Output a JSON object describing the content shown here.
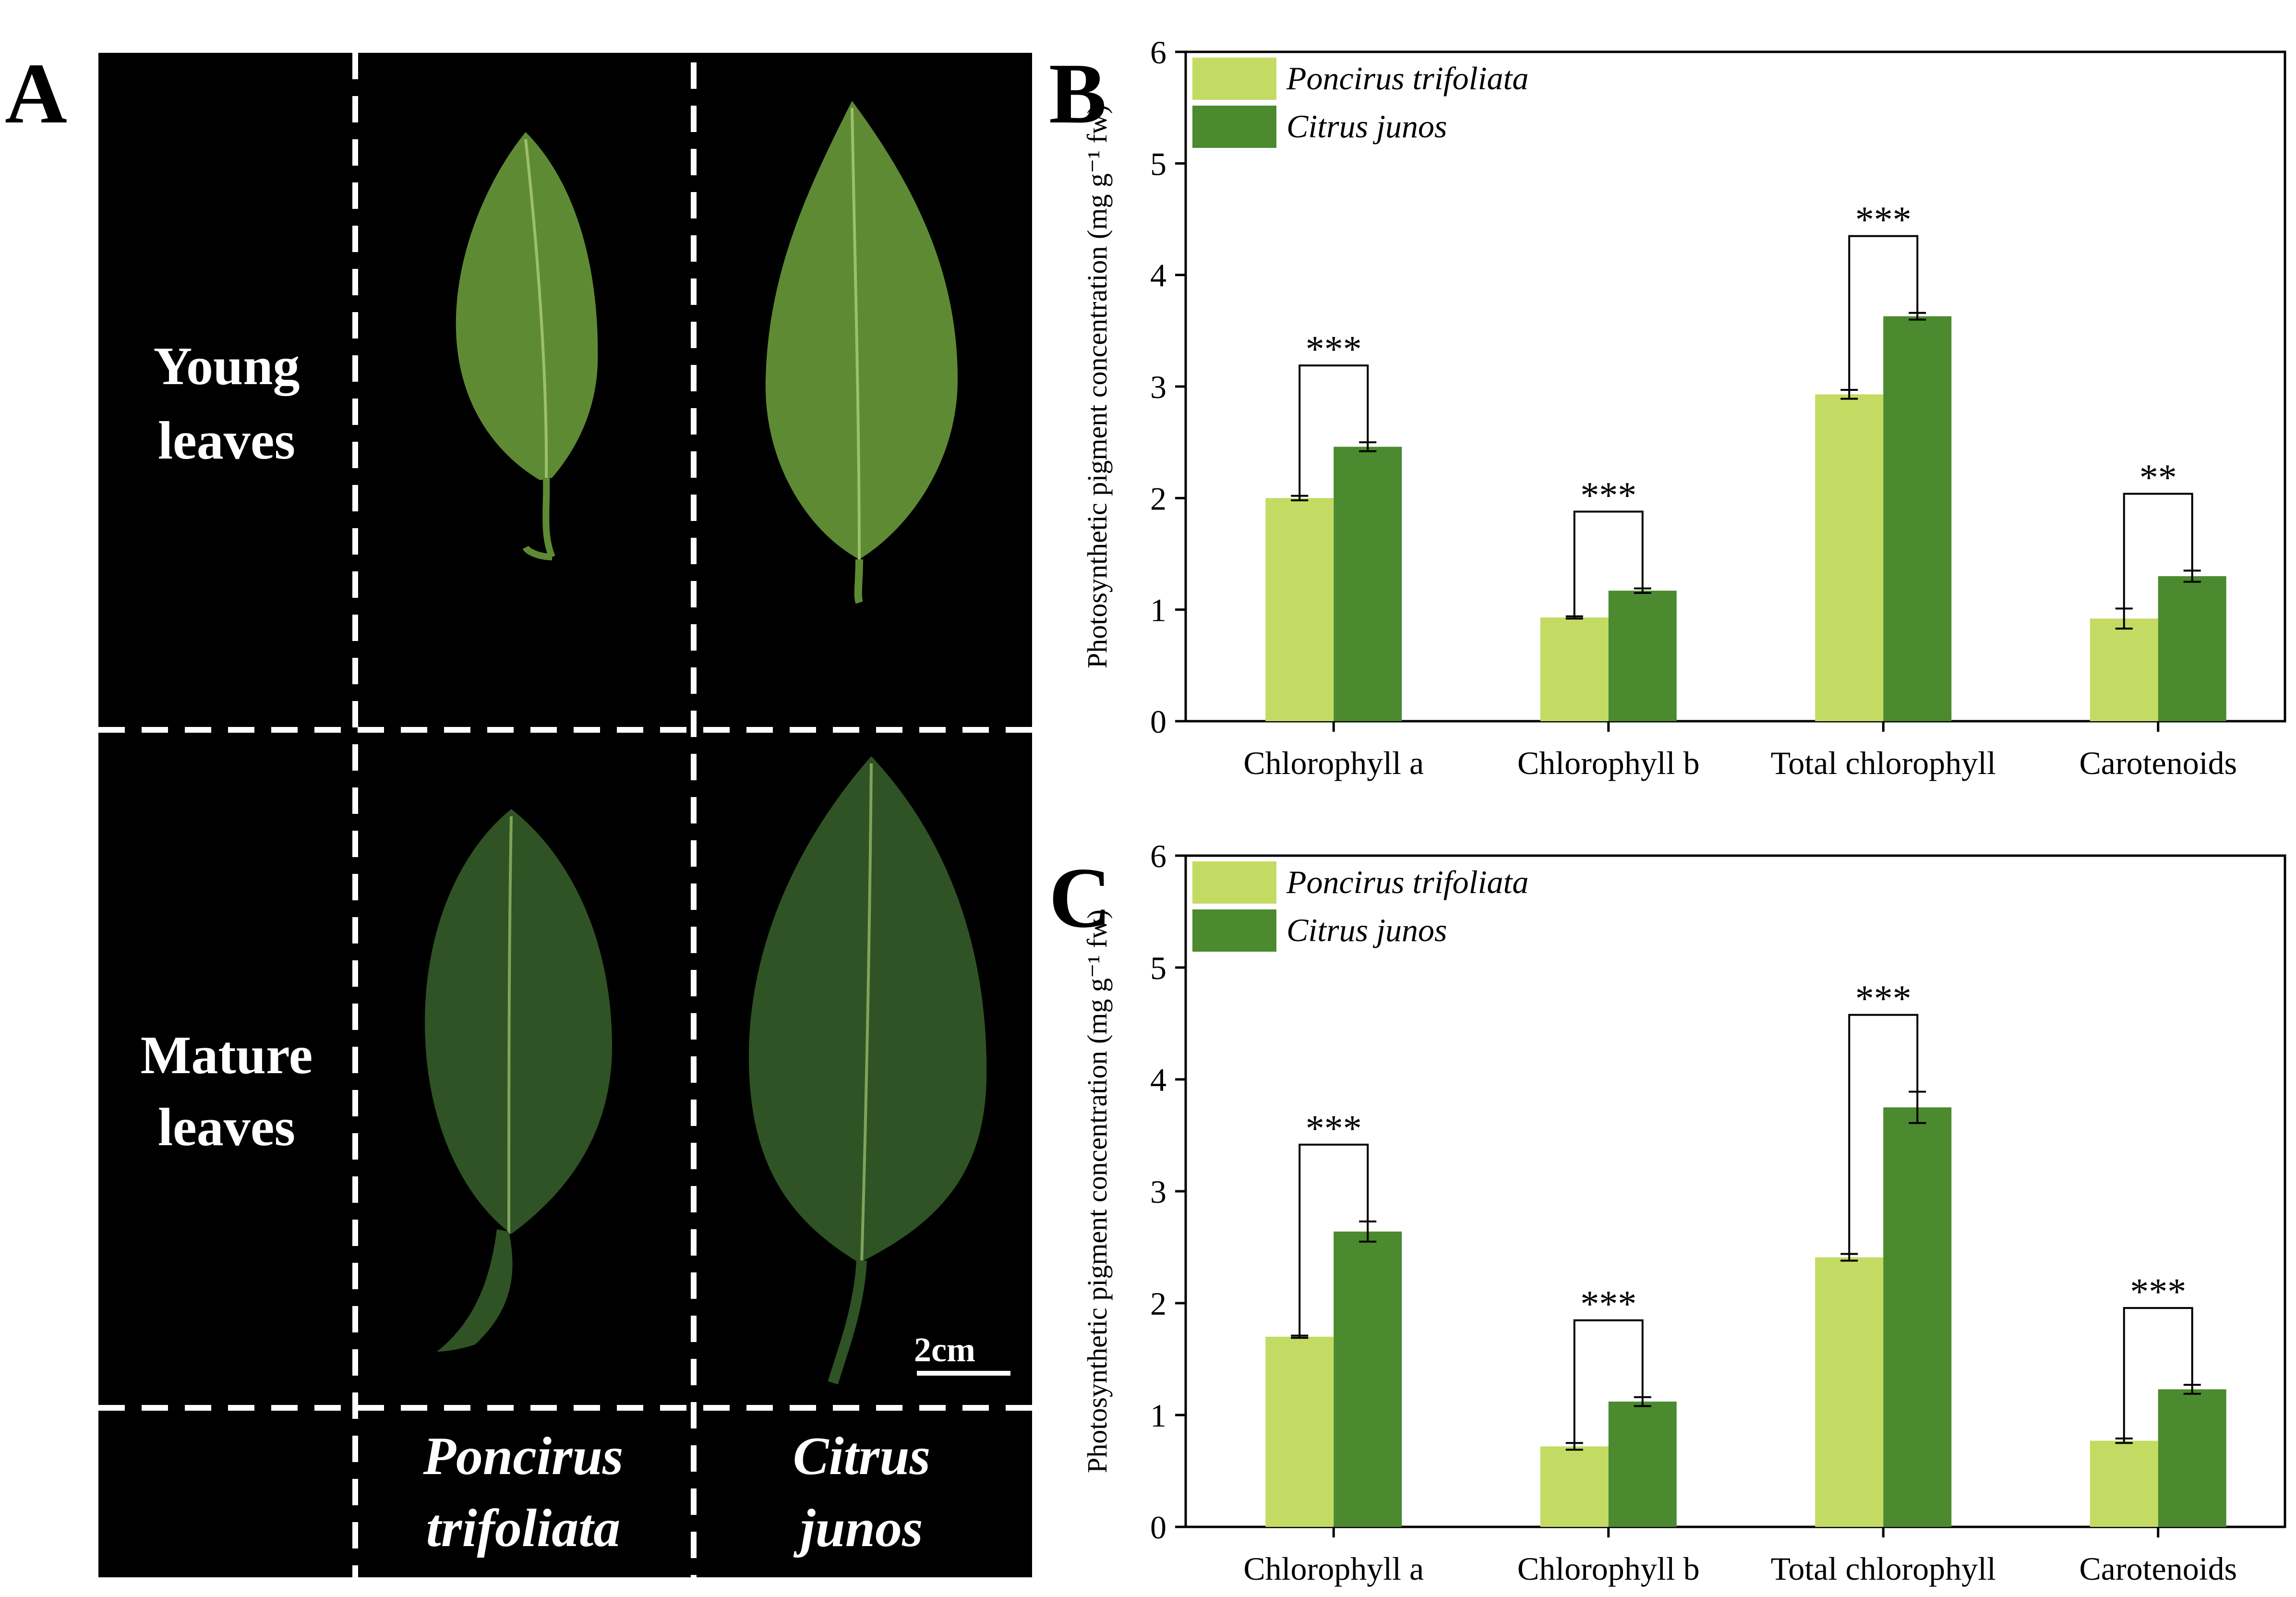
{
  "panel_labels": {
    "a": "A",
    "b": "B",
    "c": "C"
  },
  "photo": {
    "row_labels": [
      {
        "line1": "Young",
        "line2": "leaves"
      },
      {
        "line1": "Mature",
        "line2": "leaves"
      }
    ],
    "col_labels": [
      {
        "line1": "Poncirus",
        "line2": "trifoliata"
      },
      {
        "line1": "Citrus",
        "line2": "junos"
      }
    ],
    "scale_bar": "2cm",
    "colors": {
      "background": "#000000",
      "divider": "#ffffff",
      "leaf_young": "#5f8a34",
      "leaf_mature": "#2f5324",
      "vein": "#9cbf6b"
    }
  },
  "colors": {
    "poncirus": "#c4db63",
    "junos": "#4b8a2e",
    "axis": "#000000"
  },
  "chart_data": [
    {
      "type": "bar",
      "panel": "B",
      "title": "",
      "xlabel": "",
      "ylabel": "Photosynthetic pigment concentration (mg g⁻¹ fw)",
      "ylim": [
        0,
        6
      ],
      "yticks": [
        "0",
        "1",
        "2",
        "3",
        "4",
        "5",
        "6"
      ],
      "categories": [
        "Chlorophyll a",
        "Chlorophyll b",
        "Total chlorophyll",
        "Carotenoids"
      ],
      "series": [
        {
          "name": "Poncirus trifoliata",
          "values": [
            2.0,
            0.93,
            2.93,
            0.92
          ],
          "errors": [
            0.02,
            0.01,
            0.04,
            0.09
          ]
        },
        {
          "name": "Citrus junos",
          "values": [
            2.46,
            1.17,
            3.63,
            1.3
          ],
          "errors": [
            0.04,
            0.02,
            0.03,
            0.05
          ]
        }
      ],
      "significance": [
        "***",
        "***",
        "***",
        "**"
      ],
      "legend": "top-left"
    },
    {
      "type": "bar",
      "panel": "C",
      "title": "",
      "xlabel": "",
      "ylabel": "Photosynthetic pigment concentration (mg g⁻¹ fw)",
      "ylim": [
        0,
        6
      ],
      "yticks": [
        "0",
        "1",
        "2",
        "3",
        "4",
        "5",
        "6"
      ],
      "categories": [
        "Chlorophyll a",
        "Chlorophyll b",
        "Total chlorophyll",
        "Carotenoids"
      ],
      "series": [
        {
          "name": "Poncirus trifoliata",
          "values": [
            1.7,
            0.72,
            2.41,
            0.77
          ],
          "errors": [
            0.01,
            0.03,
            0.03,
            0.02
          ]
        },
        {
          "name": "Citrus junos",
          "values": [
            2.64,
            1.12,
            3.75,
            1.23
          ],
          "errors": [
            0.09,
            0.04,
            0.14,
            0.04
          ]
        }
      ],
      "significance": [
        "***",
        "***",
        "***",
        "***"
      ],
      "legend": "top-left"
    }
  ]
}
